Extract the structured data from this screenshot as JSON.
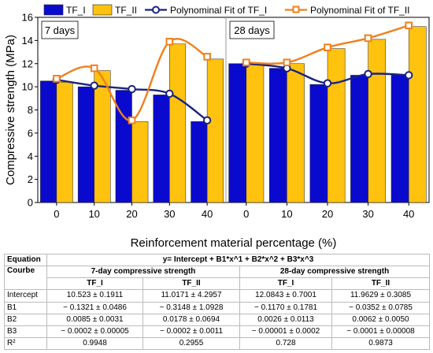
{
  "chart_data": {
    "type": "bar",
    "ylabel": "Compressive strength (MPa)",
    "xlabel": "Reinforcement material percentage (%)",
    "ylim": [
      0,
      16
    ],
    "yticks": [
      "0",
      "2",
      "4",
      "6",
      "8",
      "10",
      "12",
      "14",
      "16"
    ],
    "categories": [
      "0",
      "10",
      "20",
      "30",
      "40"
    ],
    "legend": [
      "TF_I",
      "TF_II",
      "Polynominal Fit of TF_I",
      "Polynominal Fit of TF_II"
    ],
    "legend_position": "top",
    "colors": {
      "TF_I": "#0a0acf",
      "TF_II": "#ffc20e",
      "fit_TF_I": "#1a237e",
      "fit_TF_II": "#f07f1c"
    },
    "panels": [
      {
        "label": "7 days",
        "series": [
          {
            "name": "TF_I",
            "values": [
              10.5,
              10.0,
              9.7,
              9.3,
              7.0
            ]
          },
          {
            "name": "TF_II",
            "values": [
              10.4,
              11.4,
              7.0,
              13.7,
              12.4
            ]
          }
        ],
        "points": [
          {
            "name": "Polynominal Fit of TF_I",
            "values": [
              10.6,
              10.1,
              9.8,
              9.4,
              7.1
            ]
          },
          {
            "name": "Polynominal Fit of TF_II",
            "values": [
              10.7,
              11.6,
              7.1,
              13.9,
              12.6
            ]
          }
        ],
        "fits": [
          {
            "name": "Polynominal Fit of TF_I",
            "coef": [
              10.523,
              -0.1321,
              0.0085,
              -0.0002
            ]
          },
          {
            "name": "Polynominal Fit of TF_II",
            "coef": [
              11.0171,
              -0.3148,
              0.0178,
              -0.0002
            ]
          }
        ]
      },
      {
        "label": "28 days",
        "series": [
          {
            "name": "TF_I",
            "values": [
              12.0,
              11.6,
              10.2,
              11.0,
              11.0
            ]
          },
          {
            "name": "TF_II",
            "values": [
              12.0,
              12.0,
              13.3,
              14.1,
              15.2
            ]
          }
        ],
        "points": [
          {
            "name": "Polynominal Fit of TF_I",
            "values": [
              12.0,
              11.6,
              10.3,
              11.1,
              11.0
            ]
          },
          {
            "name": "Polynominal Fit of TF_II",
            "values": [
              12.1,
              12.1,
              13.4,
              14.2,
              15.3
            ]
          }
        ],
        "fits": [
          {
            "name": "Polynominal Fit of TF_I",
            "coef": [
              12.0843,
              -0.117,
              0.0026,
              -1e-05
            ]
          },
          {
            "name": "Polynominal Fit of TF_II",
            "coef": [
              11.9629,
              -0.0352,
              0.0062,
              -0.0001
            ]
          }
        ]
      }
    ]
  },
  "table": {
    "equation_label": "Equation",
    "equation": "y= Intercept + B1*x^1 + B2*x^2 + B3*x^3",
    "courbe_label": "Courbe",
    "group_7": "7-day compressive strength",
    "group_28": "28-day compressive strength",
    "columns": [
      "TF_I",
      "TF_II",
      "TF_I",
      "TF_II"
    ],
    "rows": [
      {
        "label": "Intercept",
        "cells": [
          "10.523 ± 0.1911",
          "11.0171 ± 4.2957",
          "12.0843 ± 0.7001",
          "11.9629 ± 0.3085"
        ]
      },
      {
        "label": "B1",
        "cells": [
          "− 0.1321 ± 0.0486",
          "− 0.3148 ± 1.0928",
          "− 0.1170 ± 0.1781",
          "− 0.0352 ± 0.0785"
        ]
      },
      {
        "label": "B2",
        "cells": [
          "0.0085 ± 0.0031",
          "0.0178 ± 0.0694",
          "0.0026 ± 0.0113",
          "0.0062 ± 0.0050"
        ]
      },
      {
        "label": "B3",
        "cells": [
          "− 0.0002 ± 0.00005",
          "− 0.0002 ± 0.0011",
          "− 0.00001 ± 0.0002",
          "− 0.0001 ± 0.00008"
        ]
      },
      {
        "label": "R²",
        "cells": [
          "0.9948",
          "0.2955",
          "0.728",
          "0.9873"
        ]
      }
    ]
  }
}
